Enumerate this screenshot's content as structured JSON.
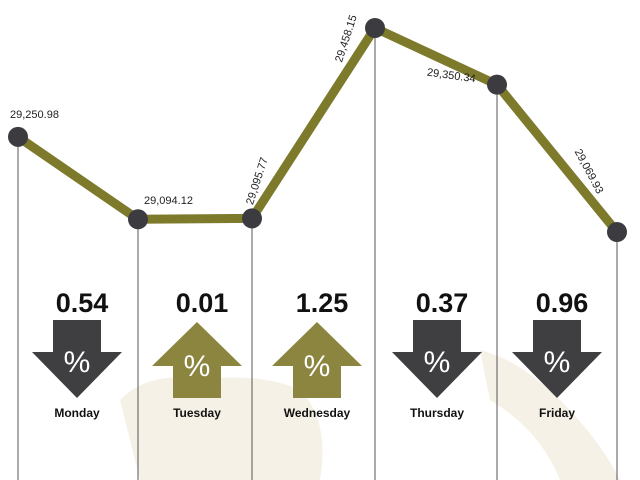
{
  "chart_data": {
    "type": "line",
    "categories": [
      null,
      null,
      null,
      null,
      null,
      null
    ],
    "series": [
      {
        "color": "#7d7a2b",
        "marker_color": "#3c3c40",
        "values": [
          29250.98,
          29094.12,
          29095.77,
          29458.15,
          29350.34,
          29069.93
        ],
        "value_labels": [
          "29,250.98",
          "29,094.12",
          "29,095.77",
          "29,458.15",
          "29,350.34",
          "29,069.93"
        ]
      }
    ],
    "changes": [
      {
        "day": "Monday",
        "value": "0.54",
        "direction": "down",
        "symbol": "%"
      },
      {
        "day": "Tuesday",
        "value": "0.01",
        "direction": "up",
        "symbol": "%"
      },
      {
        "day": "Wednesday",
        "value": "1.25",
        "direction": "up",
        "symbol": "%"
      },
      {
        "day": "Thursday",
        "value": "0.37",
        "direction": "down",
        "symbol": "%"
      },
      {
        "day": "Friday",
        "value": "0.96",
        "direction": "down",
        "symbol": "%"
      }
    ],
    "direction_colors": {
      "up": "#8c8540",
      "down": "#3f3f42"
    }
  }
}
